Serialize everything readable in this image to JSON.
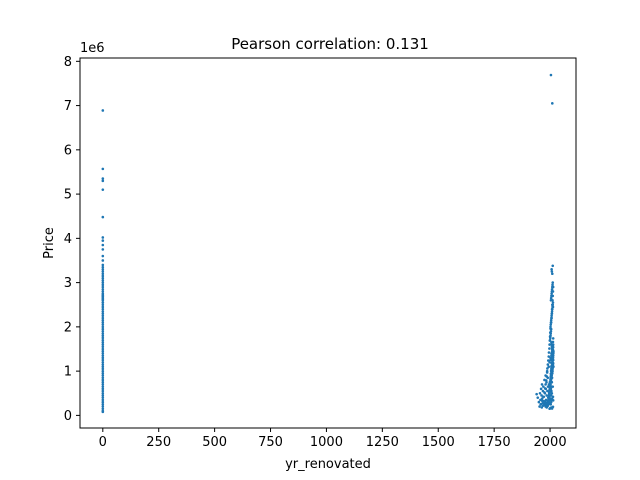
{
  "chart_data": {
    "type": "scatter",
    "title": "Pearson correlation: 0.131",
    "xlabel": "yr_renovated",
    "ylabel": "Price",
    "y_offset_label": "1e6",
    "xlim": [
      -102,
      2116
    ],
    "ylim": [
      -285000,
      8075000
    ],
    "x_ticks": [
      0,
      250,
      500,
      750,
      1000,
      1250,
      1500,
      1750,
      2000
    ],
    "y_ticks": [
      0,
      1,
      2,
      3,
      4,
      5,
      6,
      7,
      8
    ],
    "y_tick_scale": 1000000,
    "grid": false,
    "marker_color": "#1f77b4",
    "series": [
      {
        "x": [
          0,
          0,
          0,
          0,
          0,
          0,
          0,
          0,
          0,
          0,
          0,
          0,
          0,
          0,
          0,
          0,
          0,
          0,
          0,
          0,
          0,
          0,
          0,
          0,
          0,
          0,
          0,
          0,
          0,
          0,
          0,
          0,
          0,
          0,
          0,
          0,
          0,
          0,
          0,
          0,
          0,
          0,
          0,
          0,
          0,
          0,
          0,
          0,
          0,
          0,
          0,
          0,
          0,
          0,
          0,
          0,
          0,
          0,
          0,
          0,
          0,
          0,
          0,
          0,
          0,
          0,
          0,
          0,
          0,
          0,
          0,
          0,
          0,
          0,
          0,
          0,
          0,
          0,
          0,
          0,
          0,
          0,
          0,
          0,
          1940,
          1945,
          1950,
          1953,
          1955,
          1957,
          1958,
          1960,
          1962,
          1963,
          1964,
          1965,
          1967,
          1968,
          1969,
          1970,
          1972,
          1973,
          1974,
          1975,
          1977,
          1978,
          1979,
          1980,
          1981,
          1982,
          1983,
          1984,
          1985,
          1986,
          1987,
          1988,
          1989,
          1990,
          1990,
          1991,
          1992,
          1993,
          1994,
          1995,
          1996,
          1997,
          1998,
          1999,
          2000,
          2001,
          2002,
          2003,
          2004,
          2005,
          2006,
          2007,
          2008,
          2009,
          2010,
          2011,
          2012,
          2013,
          2014,
          2015,
          1960,
          1965,
          1970,
          1975,
          1978,
          1980,
          1983,
          1985,
          1987,
          1988,
          1990,
          1992,
          1994,
          1995,
          1997,
          1998,
          1999,
          2000,
          2001,
          2002,
          2003,
          2004,
          2005,
          2006,
          2007,
          2008,
          2009,
          2010,
          2011,
          2012,
          2013,
          2014,
          2015,
          1980,
          1985,
          1988,
          1990,
          1992,
          1994,
          1995,
          1996,
          1997,
          1998,
          1999,
          2000,
          2001,
          2002,
          2003,
          2004,
          2005,
          2006,
          2007,
          2008,
          2009,
          2010,
          2011,
          2012,
          2013,
          2014,
          1985,
          1988,
          1990,
          1992,
          1994,
          1995,
          1996,
          1997,
          1998,
          1999,
          2000,
          2001,
          2002,
          2003,
          2004,
          2005,
          2006,
          2007,
          2008,
          2009,
          2010,
          2011,
          2012,
          2013,
          2014,
          2015,
          1990,
          1992,
          1994,
          1995,
          1996,
          1997,
          1998,
          1999,
          2000,
          2001,
          2002,
          2003,
          2004,
          2005,
          2006,
          2007,
          2008,
          2009,
          2010,
          2011,
          2012,
          2013,
          2014,
          1995,
          1997,
          1998,
          1999,
          2000,
          2001,
          2002,
          2003,
          2004,
          2005,
          2006,
          2007,
          2008,
          2009,
          2010,
          2011,
          2012,
          2013,
          2014,
          2000,
          2001,
          2002,
          2003,
          2004,
          2005,
          2006,
          2007,
          2008,
          2009,
          2010,
          2011,
          2012,
          2013,
          2014,
          2002,
          2003,
          2004,
          2005,
          2006,
          2007,
          2008,
          2009,
          2010,
          2011,
          2012,
          2013,
          2004,
          2005,
          2006,
          2007,
          2008,
          2009,
          2010,
          2011,
          2012,
          2005,
          2007,
          2008,
          2009,
          2010,
          2011,
          2012,
          2013,
          2014,
          2007,
          2008,
          2010,
          2012,
          2013,
          1998,
          2000,
          2003,
          2005,
          2007,
          2009,
          2011,
          2013,
          2002,
          2006,
          2009,
          2012,
          1995,
          2003,
          2008,
          2014,
          2004,
          2010
        ],
        "y": [
          80000,
          100000,
          150000,
          200000,
          250000,
          300000,
          350000,
          400000,
          450000,
          500000,
          550000,
          600000,
          650000,
          700000,
          750000,
          800000,
          850000,
          900000,
          950000,
          1000000,
          1050000,
          1100000,
          1150000,
          1200000,
          1250000,
          1300000,
          1350000,
          1400000,
          1450000,
          1500000,
          1550000,
          1600000,
          1650000,
          1700000,
          1750000,
          1800000,
          1850000,
          1900000,
          1950000,
          2000000,
          2050000,
          2100000,
          2150000,
          2200000,
          2250000,
          2300000,
          2350000,
          2400000,
          2450000,
          2500000,
          2550000,
          2600000,
          2650000,
          2700000,
          2750000,
          2800000,
          2850000,
          2900000,
          2950000,
          3000000,
          3050000,
          3100000,
          3150000,
          3200000,
          3250000,
          3300000,
          3350000,
          3400000,
          3500000,
          3600000,
          3750000,
          3850000,
          3950000,
          4020000,
          4480000,
          5100000,
          5300000,
          5350000,
          5570000,
          6890000,
          2620000,
          2680000,
          2550000,
          2720000,
          480000,
          400000,
          300000,
          200000,
          500000,
          350000,
          250000,
          600000,
          450000,
          180000,
          700000,
          380000,
          280000,
          550000,
          220000,
          650000,
          420000,
          320000,
          260000,
          800000,
          500000,
          300000,
          230000,
          900000,
          600000,
          350000,
          280000,
          750000,
          450000,
          200000,
          1000000,
          550000,
          330000,
          240000,
          850000,
          650000,
          400000,
          300000,
          1100000,
          700000,
          500000,
          260000,
          1200000,
          750000,
          450000,
          350000,
          1300000,
          800000,
          600000,
          300000,
          1400000,
          900000,
          500000,
          380000,
          1500000,
          1000000,
          650000,
          420000,
          1600000,
          1100000,
          250000,
          330000,
          420000,
          520000,
          610000,
          700000,
          790000,
          880000,
          970000,
          1060000,
          1150000,
          1240000,
          1330000,
          1420000,
          1510000,
          1600000,
          1690000,
          1780000,
          1870000,
          1960000,
          250000,
          350000,
          450000,
          550000,
          650000,
          750000,
          850000,
          950000,
          1050000,
          1150000,
          1250000,
          1350000,
          1450000,
          200000,
          230000,
          270000,
          300000,
          340000,
          380000,
          420000,
          460000,
          500000,
          540000,
          580000,
          620000,
          660000,
          700000,
          740000,
          780000,
          820000,
          860000,
          900000,
          940000,
          980000,
          1020000,
          1060000,
          1100000,
          1140000,
          1180000,
          180000,
          210000,
          260000,
          310000,
          360000,
          410000,
          460000,
          510000,
          560000,
          610000,
          660000,
          710000,
          760000,
          810000,
          860000,
          910000,
          960000,
          1010000,
          1060000,
          1110000,
          1160000,
          1210000,
          1260000,
          1310000,
          1360000,
          1410000,
          220000,
          280000,
          340000,
          400000,
          460000,
          520000,
          580000,
          640000,
          700000,
          760000,
          820000,
          880000,
          940000,
          1000000,
          1060000,
          1120000,
          1180000,
          1240000,
          1300000,
          1360000,
          1420000,
          1480000,
          1540000,
          300000,
          380000,
          460000,
          540000,
          620000,
          700000,
          780000,
          860000,
          940000,
          1020000,
          1100000,
          1180000,
          1260000,
          1340000,
          1420000,
          1500000,
          1580000,
          1660000,
          1740000,
          1700000,
          1750000,
          1800000,
          1850000,
          1900000,
          1950000,
          1650000,
          1600000,
          1550000,
          1500000,
          1450000,
          1400000,
          1350000,
          1300000,
          1250000,
          2000000,
          2050000,
          2100000,
          2150000,
          2200000,
          2250000,
          2300000,
          2350000,
          2400000,
          2450000,
          2500000,
          2550000,
          2600000,
          2650000,
          2700000,
          2750000,
          2800000,
          2850000,
          2900000,
          2950000,
          3000000,
          2100000,
          2200000,
          2300000,
          2400000,
          2500000,
          2600000,
          2700000,
          2800000,
          2900000,
          3300000,
          3250000,
          3200000,
          3380000,
          2450000,
          150000,
          160000,
          170000,
          175000,
          165000,
          155000,
          185000,
          195000,
          1250000,
          1350000,
          1450000,
          1550000,
          420000,
          380000,
          360000,
          340000,
          7690000,
          7050000
        ]
      }
    ]
  }
}
